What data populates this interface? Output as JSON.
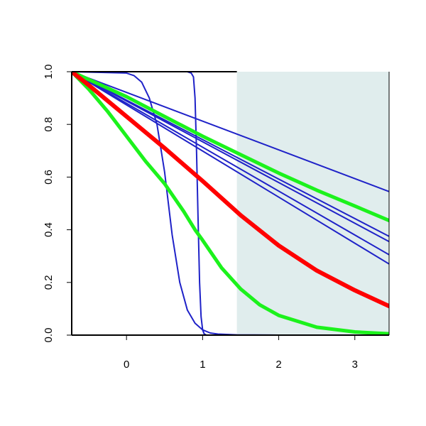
{
  "chart_data": {
    "type": "line",
    "title": "",
    "xlabel": "",
    "ylabel": "",
    "xlim": [
      -0.72,
      3.45
    ],
    "ylim": [
      0,
      1
    ],
    "grid": false,
    "x_ticks": [
      0,
      1,
      2,
      3
    ],
    "x_tick_labels": [
      "0",
      "1",
      "2",
      "3"
    ],
    "y_ticks": [
      0,
      0.2,
      0.4,
      0.6,
      0.8,
      1
    ],
    "y_tick_labels": [
      "0.0",
      "0.2",
      "0.4",
      "0.6",
      "0.8",
      "1.0"
    ],
    "shaded_region": {
      "x_start": 1.45,
      "x_end": 3.45,
      "color": "#e0eded"
    },
    "colors": {
      "blue": "#1f22c8",
      "red": "#ff0000",
      "green": "#1cf21c",
      "axis": "#000000"
    },
    "series": [
      {
        "color": "#1f22c8",
        "width": 2,
        "x": [
          -0.72,
          3.45
        ],
        "y": [
          1.0,
          0.545
        ]
      },
      {
        "color": "#1f22c8",
        "width": 2,
        "x": [
          -0.72,
          3.45
        ],
        "y": [
          1.0,
          0.375
        ]
      },
      {
        "color": "#1f22c8",
        "width": 2,
        "x": [
          -0.72,
          3.45
        ],
        "y": [
          1.0,
          0.355
        ]
      },
      {
        "color": "#1f22c8",
        "width": 2,
        "x": [
          -0.72,
          3.45
        ],
        "y": [
          1.0,
          0.305
        ]
      },
      {
        "color": "#1f22c8",
        "width": 2,
        "x": [
          -0.72,
          3.45
        ],
        "y": [
          1.0,
          0.27
        ]
      },
      {
        "color": "#1f22c8",
        "width": 2,
        "x": [
          -0.72,
          0.0,
          0.1,
          0.2,
          0.3,
          0.4,
          0.5,
          0.6,
          0.7,
          0.8,
          0.9,
          1.0,
          1.1,
          1.2,
          1.45,
          2.0,
          3.45
        ],
        "y": [
          1.0,
          0.995,
          0.985,
          0.96,
          0.9,
          0.8,
          0.62,
          0.38,
          0.2,
          0.095,
          0.045,
          0.02,
          0.008,
          0.004,
          0.001,
          0.0,
          0.0
        ]
      },
      {
        "color": "#1f22c8",
        "width": 2,
        "x": [
          -0.72,
          0.8,
          0.85,
          0.88,
          0.9,
          0.92,
          0.94,
          0.96,
          0.98,
          1.0,
          1.02,
          1.05,
          1.1,
          3.45
        ],
        "y": [
          1.0,
          1.0,
          0.995,
          0.98,
          0.9,
          0.7,
          0.45,
          0.2,
          0.07,
          0.02,
          0.005,
          0.0,
          0.0,
          0.0
        ]
      },
      {
        "color": "#1cf21c",
        "width": 5,
        "x": [
          -0.72,
          0.0,
          0.5,
          1.0,
          1.5,
          2.0,
          2.5,
          3.0,
          3.45
        ],
        "y": [
          1.0,
          0.905,
          0.83,
          0.755,
          0.685,
          0.615,
          0.55,
          0.49,
          0.435
        ]
      },
      {
        "color": "#1cf21c",
        "width": 5,
        "x": [
          -0.72,
          -0.5,
          -0.25,
          0.0,
          0.25,
          0.5,
          0.75,
          0.9,
          1.0,
          1.25,
          1.5,
          1.75,
          2.0,
          2.5,
          3.0,
          3.45
        ],
        "y": [
          1.0,
          0.935,
          0.85,
          0.755,
          0.66,
          0.575,
          0.47,
          0.4,
          0.36,
          0.255,
          0.175,
          0.115,
          0.075,
          0.03,
          0.012,
          0.005
        ]
      },
      {
        "color": "#ff0000",
        "width": 6,
        "x": [
          -0.72,
          -0.5,
          0.0,
          0.5,
          1.0,
          1.5,
          2.0,
          2.5,
          3.0,
          3.45
        ],
        "y": [
          1.0,
          0.95,
          0.83,
          0.71,
          0.585,
          0.455,
          0.34,
          0.245,
          0.17,
          0.11
        ]
      }
    ]
  }
}
